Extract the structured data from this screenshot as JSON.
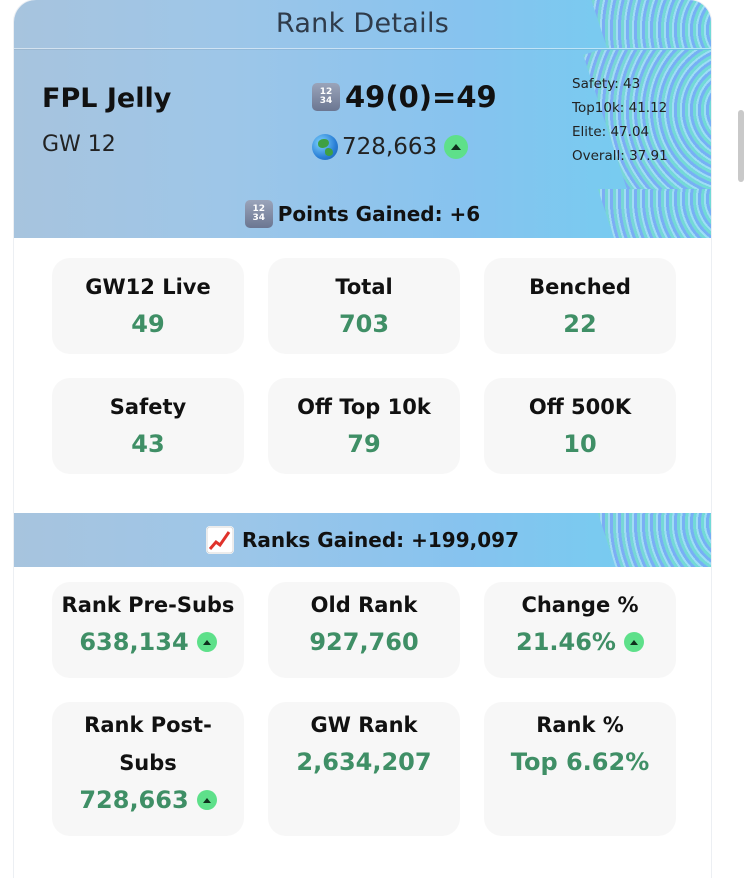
{
  "header": {
    "title": "Rank Details"
  },
  "team": {
    "name": "FPL Jelly",
    "gameweek": "GW 12"
  },
  "summary": {
    "points_text": "49(0)=49",
    "overall_rank": "728,663",
    "rank_trend": "up"
  },
  "benchmarks": {
    "safety": "Safety: 43",
    "top10k": "Top10k: 41.12",
    "elite": "Elite: 47.04",
    "overall": "Overall: 37.91"
  },
  "points_section": {
    "title": "Points Gained: +6",
    "tiles": [
      {
        "label": "GW12 Live",
        "value": "49"
      },
      {
        "label": "Total",
        "value": "703"
      },
      {
        "label": "Benched",
        "value": "22"
      },
      {
        "label": "Safety",
        "value": "43"
      },
      {
        "label": "Off Top 10k",
        "value": "79"
      },
      {
        "label": "Off 500K",
        "value": "10"
      }
    ]
  },
  "ranks_section": {
    "title": "Ranks Gained: +199,097",
    "tiles": [
      {
        "label": "Rank Pre-Subs",
        "value": "638,134",
        "trend": "up"
      },
      {
        "label": "Old Rank",
        "value": "927,760"
      },
      {
        "label": "Change %",
        "value": "21.46%",
        "trend": "up"
      },
      {
        "label": "Rank Post-Subs",
        "value": "728,663",
        "trend": "up"
      },
      {
        "label": "GW Rank",
        "value": "2,634,207"
      },
      {
        "label": "Rank %",
        "value": "Top 6.62%"
      }
    ]
  },
  "colors": {
    "value_green": "#3f8f66",
    "trend_badge": "#5ee08a",
    "tile_bg": "#f7f7f7"
  },
  "icons": [
    "numbers-icon",
    "globe-icon",
    "chart-increasing-icon",
    "arrow-up-icon"
  ]
}
